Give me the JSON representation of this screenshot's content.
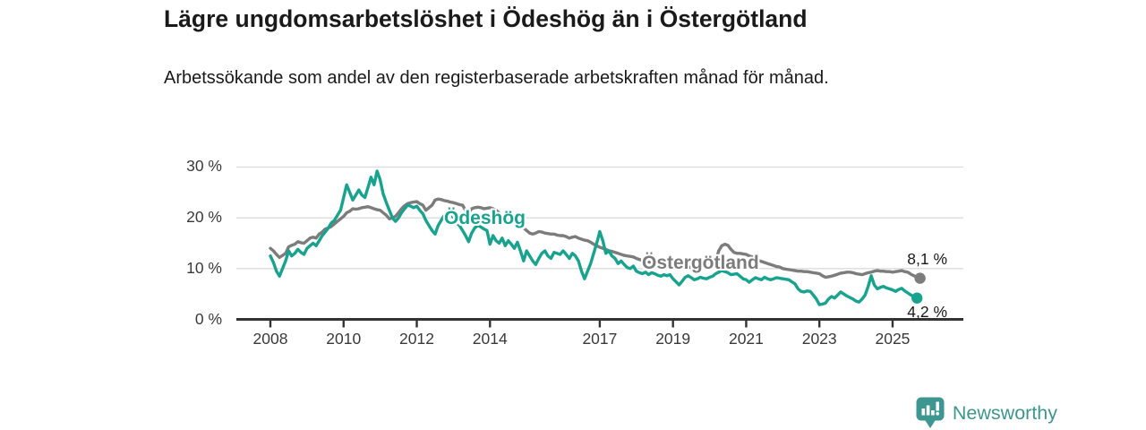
{
  "title": "Lägre ungdomsarbetslöshet i Ödeshög än i Östergötland",
  "subtitle": "Arbetssökande som andel av den registerbaserade arbetskraften månad för månad.",
  "footer": {
    "brand": "Newsworthy",
    "logo_color": "#3d968f"
  },
  "chart_data": {
    "type": "line",
    "unit": "%",
    "x_start": 2008.0,
    "x_step_months": 1,
    "x_range": [
      2008,
      2025.83
    ],
    "ylim": [
      0,
      30
    ],
    "grid": "horizontal",
    "yticks": [
      {
        "value": 30,
        "label": "30 %"
      },
      {
        "value": 20,
        "label": "20 %"
      },
      {
        "value": 10,
        "label": "10 %"
      },
      {
        "value": 0,
        "label": "0 %"
      }
    ],
    "xticks": [
      "2008",
      "2010",
      "2012",
      "2014",
      "2017",
      "2019",
      "2021",
      "2023",
      "2025"
    ],
    "xtick_years": [
      2008,
      2010,
      2012,
      2014,
      2017,
      2019,
      2021,
      2023,
      2025
    ],
    "series": [
      {
        "name": "Östergötland",
        "color": "#7c7c7c",
        "end_label": "8,1 %",
        "end_value": 8.1,
        "values": [
          14,
          13.5,
          12.8,
          12.2,
          12.6,
          13,
          14.3,
          14.6,
          14.8,
          15.3,
          15.1,
          15,
          15.5,
          16,
          16.2,
          16,
          16.8,
          17.2,
          17.8,
          18,
          18.3,
          18.8,
          19.3,
          19.8,
          20.3,
          21,
          21.3,
          21.8,
          21.7,
          21.8,
          22,
          22.1,
          22.2,
          22,
          21.8,
          21.6,
          21.5,
          21,
          20.5,
          19.8,
          20,
          20.3,
          21,
          21.8,
          22.4,
          22.8,
          23,
          23.1,
          23.2,
          22.8,
          22.5,
          21.5,
          22,
          22.5,
          23.5,
          23.7,
          23.6,
          23.4,
          23.3,
          23.1,
          23,
          22.8,
          22.6,
          22.5,
          21.5,
          21,
          21.8,
          22,
          22.1,
          22,
          21.8,
          21.9,
          22,
          21.8,
          21.5,
          21,
          20.5,
          20.3,
          19.8,
          19.5,
          19,
          18.8,
          18.3,
          18,
          17.5,
          17,
          16.8,
          17,
          17.3,
          17.2,
          17,
          16.9,
          16.8,
          16.8,
          16.6,
          16.5,
          16.5,
          16.3,
          16,
          16.2,
          16.3,
          16,
          15.8,
          15.6,
          15.5,
          15.2,
          14.8,
          14.5,
          14.2,
          14,
          13.8,
          13.5,
          13.4,
          13.2,
          13,
          12.8,
          12.6,
          12.5,
          12.4,
          12.3,
          12,
          11.8,
          11.6,
          11.4,
          11.3,
          11.2,
          11,
          10.9,
          10.8,
          10.7,
          10.6,
          10.6,
          10.5,
          10.3,
          10.2,
          10.3,
          10.4,
          10.3,
          10.2,
          10.3,
          10.4,
          10.5,
          10.6,
          10.7,
          10.8,
          11.2,
          11.5,
          13.5,
          14.5,
          14.8,
          14.6,
          13.8,
          13.2,
          13,
          13,
          12.9,
          12.8,
          12.5,
          12.3,
          11.8,
          11.6,
          11.4,
          11.2,
          11,
          10.8,
          10.6,
          10.4,
          10.3,
          10,
          9.9,
          9.8,
          9.7,
          9.6,
          9.5,
          9.5,
          9.4,
          9.4,
          9.3,
          9.2,
          9.1,
          9,
          8.6,
          8.3,
          8.4,
          8.5,
          8.7,
          8.9,
          9.1,
          9.2,
          9.3,
          9.3,
          9.2,
          9,
          8.9,
          8.8,
          9,
          9.2,
          9.3,
          9.5,
          9.6,
          9.5,
          9.5,
          9.4,
          9.4,
          9.3,
          9.4,
          9.5,
          9.6,
          9.4,
          9.3,
          8.9,
          8.6,
          8.3,
          8.1
        ]
      },
      {
        "name": "Ödeshög",
        "color": "#18a38e",
        "end_label": "4,2 %",
        "end_value": 4.2,
        "values": [
          12.5,
          11.2,
          9.5,
          8.5,
          10,
          11.5,
          13.5,
          12.5,
          13,
          13.8,
          13.2,
          12.8,
          14,
          14.5,
          15,
          14.5,
          15.5,
          16.5,
          17.2,
          18,
          19,
          19.5,
          20.5,
          21.5,
          24,
          26.5,
          25,
          23.5,
          24.5,
          25.5,
          24.5,
          24,
          26,
          28,
          26.5,
          29.2,
          27.5,
          24.7,
          23,
          21.5,
          20,
          19.3,
          20,
          21,
          21.8,
          22.5,
          22.3,
          22,
          22.3,
          21.5,
          20.8,
          19.5,
          18.5,
          17.5,
          16.8,
          18.5,
          19.5,
          20.5,
          21.2,
          21.5,
          20,
          19,
          18.5,
          17.5,
          16.5,
          15.3,
          17,
          18,
          18.5,
          18.2,
          17.8,
          17.5,
          14.8,
          16.5,
          15.5,
          15,
          16,
          14.5,
          15.5,
          14.8,
          14,
          15.2,
          13.5,
          11.5,
          13.5,
          12.5,
          11.5,
          10.8,
          12,
          13,
          13.5,
          12.5,
          12,
          13.2,
          13,
          12.8,
          13.5,
          12.8,
          12,
          13,
          12.5,
          11.5,
          9.5,
          8,
          9.5,
          11,
          13,
          15,
          17.3,
          15.5,
          13,
          13.5,
          12.5,
          12,
          11,
          11.5,
          10.8,
          10.2,
          10,
          10.5,
          9.5,
          9.2,
          9,
          9.3,
          8.8,
          9.2,
          9,
          8.7,
          8.5,
          8.8,
          8.6,
          8.8,
          8,
          7.4,
          6.8,
          7.5,
          8.3,
          8.6,
          8.2,
          7.8,
          8,
          8.3,
          8.1,
          8,
          8.3,
          8.5,
          9,
          9.3,
          9.6,
          9.4,
          9.2,
          8.8,
          8.9,
          9,
          8.5,
          8,
          7.8,
          7.3,
          7.8,
          8.2,
          8,
          7.8,
          8.3,
          8,
          7.8,
          8,
          8.2,
          8.1,
          8,
          7.9,
          7.8,
          7.4,
          7,
          6,
          5.5,
          5.4,
          5.6,
          5.5,
          4.8,
          4,
          2.9,
          3,
          3.2,
          4,
          4.5,
          4.2,
          4.8,
          5.4,
          5,
          4.6,
          4.3,
          4,
          3.6,
          3.4,
          4,
          4.8,
          6.5,
          8.6,
          6.8,
          6,
          6.3,
          6.5,
          6.2,
          6,
          5.8,
          5.5,
          5.9,
          6.1,
          5.6,
          5.2,
          4.8,
          4.5,
          4.2
        ]
      }
    ]
  }
}
